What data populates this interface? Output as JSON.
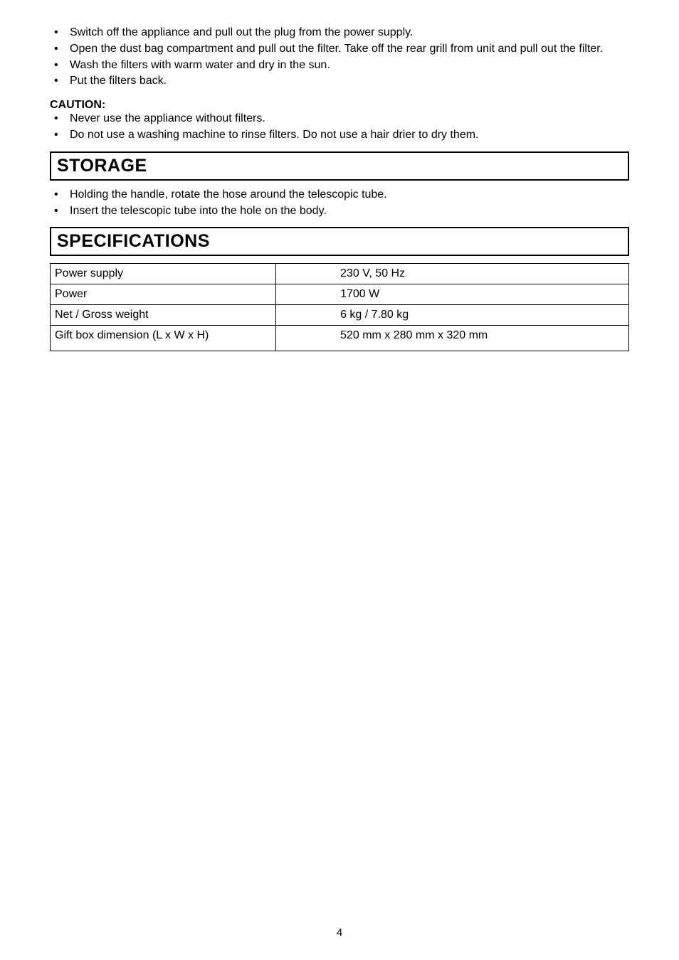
{
  "intro_bullets": [
    "Switch off the appliance and pull out the plug from the power supply.",
    "Open the dust bag compartment and pull out the filter. Take off the rear grill from unit and pull out the filter.",
    "Wash the filters with warm water and dry in the sun.",
    "Put the filters back."
  ],
  "caution": {
    "label": "CAUTION:",
    "bullets": [
      "Never use the appliance without filters.",
      "Do not use a washing machine to rinse filters. Do not use a hair drier to dry them."
    ]
  },
  "storage": {
    "heading": "STORAGE",
    "bullets": [
      "Holding the handle, rotate the hose around the telescopic tube.",
      "Insert the telescopic tube into the hole on the body."
    ]
  },
  "specs": {
    "heading": "SPECIFICATIONS",
    "rows": [
      {
        "label": "Power supply",
        "value": "230 V, 50 Hz"
      },
      {
        "label": "Power",
        "value": "1700 W"
      },
      {
        "label": "Net / Gross weight",
        "value": "6 kg / 7.80 kg"
      },
      {
        "label": "Gift box dimension (L x W x H)",
        "value": "520 mm x 280 mm x 320 mm"
      }
    ]
  },
  "page_number": "4"
}
